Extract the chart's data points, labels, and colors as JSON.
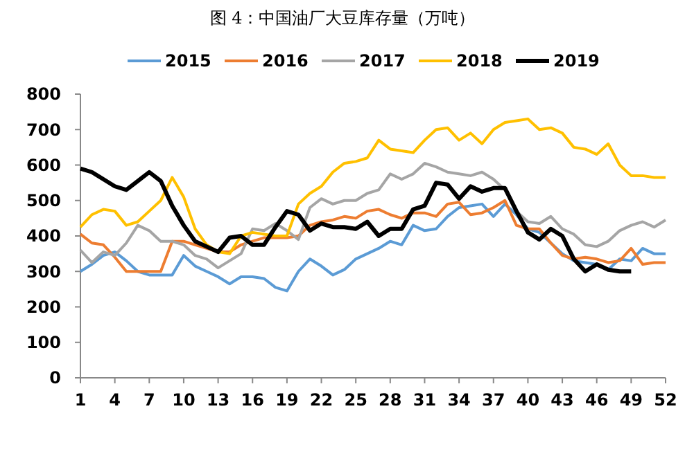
{
  "chart_data": {
    "type": "line",
    "title": "图 4：中国油厂大豆库存量（万吨）",
    "x": [
      1,
      2,
      3,
      4,
      5,
      6,
      7,
      8,
      9,
      10,
      11,
      12,
      13,
      14,
      15,
      16,
      17,
      18,
      19,
      20,
      21,
      22,
      23,
      24,
      25,
      26,
      27,
      28,
      29,
      30,
      31,
      32,
      33,
      34,
      35,
      36,
      37,
      38,
      39,
      40,
      41,
      42,
      43,
      44,
      45,
      46,
      47,
      48,
      49,
      50,
      51,
      52
    ],
    "xlim": [
      1,
      52
    ],
    "xticks": [
      1,
      4,
      7,
      10,
      13,
      16,
      19,
      22,
      25,
      28,
      31,
      34,
      37,
      40,
      43,
      46,
      49,
      52
    ],
    "ylim": [
      0,
      800
    ],
    "yticks": [
      0,
      100,
      200,
      300,
      400,
      500,
      600,
      700,
      800
    ],
    "legend": "top",
    "grid": false,
    "marker": "none",
    "series": [
      {
        "name": "2015",
        "color": "#5b9bd5",
        "values": [
          300,
          320,
          345,
          355,
          330,
          300,
          290,
          290,
          290,
          345,
          315,
          300,
          285,
          265,
          285,
          285,
          280,
          255,
          245,
          300,
          335,
          315,
          290,
          305,
          335,
          350,
          365,
          385,
          375,
          430,
          415,
          420,
          455,
          480,
          485,
          490,
          455,
          490,
          460,
          420,
          410,
          380,
          350,
          330,
          325,
          320,
          305,
          335,
          330,
          365,
          350,
          350
        ]
      },
      {
        "name": "2016",
        "color": "#ed7d31",
        "values": [
          405,
          380,
          375,
          340,
          300,
          300,
          300,
          300,
          385,
          385,
          375,
          365,
          355,
          355,
          375,
          385,
          395,
          395,
          395,
          400,
          430,
          440,
          445,
          455,
          450,
          470,
          475,
          460,
          450,
          465,
          465,
          455,
          490,
          495,
          460,
          465,
          480,
          500,
          430,
          420,
          420,
          380,
          345,
          335,
          340,
          335,
          325,
          330,
          365,
          320,
          325,
          325
        ]
      },
      {
        "name": "2017",
        "color": "#a5a5a5",
        "values": [
          360,
          325,
          355,
          345,
          380,
          430,
          415,
          385,
          385,
          375,
          345,
          335,
          310,
          330,
          350,
          420,
          415,
          435,
          415,
          390,
          480,
          505,
          490,
          500,
          500,
          520,
          530,
          575,
          560,
          575,
          605,
          595,
          580,
          575,
          570,
          580,
          560,
          530,
          470,
          440,
          435,
          455,
          420,
          405,
          375,
          370,
          385,
          415,
          430,
          440,
          425,
          445
        ]
      },
      {
        "name": "2018",
        "color": "#ffc000",
        "values": [
          425,
          460,
          475,
          470,
          430,
          440,
          470,
          500,
          565,
          510,
          420,
          375,
          355,
          350,
          400,
          410,
          405,
          400,
          400,
          490,
          520,
          540,
          580,
          605,
          610,
          620,
          670,
          645,
          640,
          635,
          670,
          700,
          705,
          670,
          690,
          660,
          700,
          720,
          725,
          730,
          700,
          705,
          690,
          650,
          645,
          630,
          660,
          600,
          570,
          570,
          565,
          565
        ]
      },
      {
        "name": "2019",
        "color": "#000000",
        "values": [
          590,
          580,
          560,
          540,
          530,
          555,
          580,
          555,
          485,
          430,
          385,
          370,
          355,
          395,
          400,
          375,
          375,
          425,
          470,
          460,
          415,
          435,
          425,
          425,
          420,
          440,
          400,
          420,
          420,
          475,
          485,
          550,
          545,
          505,
          540,
          525,
          535,
          535,
          470,
          410,
          390,
          420,
          400,
          335,
          300,
          320,
          305,
          300,
          300,
          null,
          null,
          null
        ]
      }
    ]
  }
}
